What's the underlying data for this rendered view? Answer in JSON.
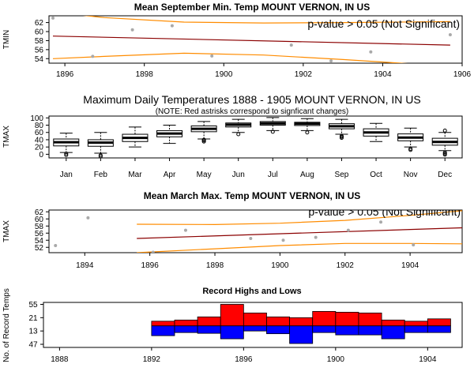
{
  "chart_data": [
    {
      "type": "scatter",
      "title": "Mean September Min. Temp MOUNT VERNON, IN US",
      "ylabel": "TMIN",
      "xlim": [
        1895.6,
        1906.0
      ],
      "ylim": [
        53,
        63.5
      ],
      "yticks": [
        54,
        56,
        58,
        60,
        62
      ],
      "xticks": [
        1896,
        1898,
        1900,
        1902,
        1904,
        1906
      ],
      "annotation": "p-value > 0.05 (Not Significant)",
      "points": [
        {
          "x": 1895.7,
          "y": 63.0
        },
        {
          "x": 1896.7,
          "y": 54.5
        },
        {
          "x": 1897.7,
          "y": 60.4
        },
        {
          "x": 1898.7,
          "y": 61.3
        },
        {
          "x": 1899.7,
          "y": 54.6
        },
        {
          "x": 1901.7,
          "y": 57.0
        },
        {
          "x": 1902.7,
          "y": 53.5
        },
        {
          "x": 1903.7,
          "y": 55.5
        },
        {
          "x": 1905.7,
          "y": 59.3
        }
      ],
      "trend": {
        "x": [
          1895.7,
          1905.7
        ],
        "y": [
          59.0,
          57.0
        ]
      },
      "ci_upper": {
        "x": [
          1895.7,
          1897.0,
          1899.0,
          1901.0,
          1903.0,
          1905.7
        ],
        "y": [
          64.3,
          63.1,
          62.1,
          61.9,
          62.0,
          62.2
        ]
      },
      "ci_lower": {
        "x": [
          1895.7,
          1897.0,
          1899.0,
          1901.0,
          1903.0,
          1905.7
        ],
        "y": [
          54.0,
          54.5,
          55.2,
          54.8,
          53.8,
          52.3
        ]
      }
    },
    {
      "type": "box",
      "title": "Maximum Daily Temperatures 1888 - 1905 MOUNT VERNON, IN US",
      "subtitle": "(NOTE: Red astrisks correspond to signficant changes)",
      "ylabel": "TMAX",
      "ylim": [
        -10,
        105
      ],
      "yticks": [
        0,
        20,
        40,
        60,
        80,
        100
      ],
      "categories": [
        "Jan",
        "Feb",
        "Mar",
        "Apr",
        "May",
        "Jun",
        "Jul",
        "Aug",
        "Sep",
        "Oct",
        "Nov",
        "Dec"
      ],
      "boxes": [
        {
          "whislo": 5,
          "q1": 23,
          "med": 33,
          "q3": 42,
          "whishi": 58,
          "fliers": [
            -2,
            2
          ]
        },
        {
          "whislo": 3,
          "q1": 22,
          "med": 32,
          "q3": 40,
          "whishi": 60,
          "fliers": [
            -3,
            -6
          ]
        },
        {
          "whislo": 20,
          "q1": 35,
          "med": 45,
          "q3": 55,
          "whishi": 75,
          "fliers": []
        },
        {
          "whislo": 30,
          "q1": 48,
          "med": 57,
          "q3": 65,
          "whishi": 80,
          "fliers": []
        },
        {
          "whislo": 42,
          "q1": 62,
          "med": 70,
          "q3": 78,
          "whishi": 90,
          "fliers": [
            35,
            38,
            40
          ]
        },
        {
          "whislo": 60,
          "q1": 75,
          "med": 81,
          "q3": 86,
          "whishi": 96,
          "fliers": [
            55
          ]
        },
        {
          "whislo": 65,
          "q1": 80,
          "med": 85,
          "q3": 90,
          "whishi": 101,
          "fliers": [
            62
          ]
        },
        {
          "whislo": 65,
          "q1": 79,
          "med": 84,
          "q3": 88,
          "whishi": 98,
          "fliers": [
            60
          ]
        },
        {
          "whislo": 55,
          "q1": 70,
          "med": 77,
          "q3": 84,
          "whishi": 96,
          "fliers": [
            45,
            48,
            50
          ]
        },
        {
          "whislo": 35,
          "q1": 50,
          "med": 60,
          "q3": 70,
          "whishi": 85,
          "fliers": []
        },
        {
          "whislo": 20,
          "q1": 37,
          "med": 46,
          "q3": 56,
          "whishi": 72,
          "fliers": [
            12,
            15
          ]
        },
        {
          "whislo": 10,
          "q1": 25,
          "med": 34,
          "q3": 44,
          "whishi": 60,
          "fliers": [
            -1,
            2,
            5,
            65
          ]
        }
      ]
    },
    {
      "type": "scatter",
      "title": "Mean March Max. Temp MOUNT VERNON, IN US",
      "ylabel": "TMAX",
      "xlim": [
        1892.9,
        1905.6
      ],
      "ylim": [
        50.5,
        62.5
      ],
      "yticks": [
        52,
        54,
        56,
        58,
        60,
        62
      ],
      "xticks": [
        1894,
        1896,
        1898,
        1900,
        1902,
        1904
      ],
      "annotation": "p-value > 0.05 (Not Significant)",
      "points": [
        {
          "x": 1893.1,
          "y": 52.5
        },
        {
          "x": 1894.1,
          "y": 60.3
        },
        {
          "x": 1896.1,
          "y": 50.6
        },
        {
          "x": 1897.1,
          "y": 56.8
        },
        {
          "x": 1899.1,
          "y": 54.5
        },
        {
          "x": 1900.1,
          "y": 54.0
        },
        {
          "x": 1901.1,
          "y": 54.8
        },
        {
          "x": 1902.1,
          "y": 56.8
        },
        {
          "x": 1903.1,
          "y": 59.1
        },
        {
          "x": 1904.1,
          "y": 52.7
        }
      ],
      "trend": {
        "x": [
          1895.6,
          1905.6
        ],
        "y": [
          54.5,
          57.5
        ]
      },
      "ci_upper": {
        "x": [
          1895.6,
          1898.0,
          1900.0,
          1902.0,
          1904.0,
          1905.6
        ],
        "y": [
          58.5,
          58.4,
          58.8,
          59.6,
          61.0,
          62.3
        ]
      },
      "ci_lower": {
        "x": [
          1895.6,
          1898.0,
          1900.0,
          1902.0,
          1904.0,
          1905.6
        ],
        "y": [
          50.5,
          51.6,
          52.5,
          53.1,
          53.1,
          53.0
        ]
      }
    },
    {
      "type": "bar",
      "title": "Record Highs and Lows",
      "ylabel": "No. of Record Temps",
      "xlim": [
        1887.3,
        1905.5
      ],
      "xticks": [
        1888,
        1892,
        1896,
        1900,
        1904
      ],
      "yticks": [
        {
          "label": "55",
          "value": 55
        },
        {
          "label": "21",
          "value": 21
        },
        {
          "label": "13",
          "value": -13
        },
        {
          "label": "47",
          "value": -47
        }
      ],
      "ylim": [
        -55,
        60
      ],
      "years": [
        1892,
        1893,
        1894,
        1895,
        1896,
        1897,
        1898,
        1899,
        1900,
        1901,
        1902,
        1903,
        1904
      ],
      "series": [
        {
          "name": "",
          "color": "#ff0000",
          "values": [
            12,
            15,
            23,
            55,
            33,
            23,
            21,
            37,
            35,
            33,
            15,
            12,
            18
          ]
        },
        {
          "name": "",
          "color": "#0000ff",
          "values": [
            -25,
            -17,
            -19,
            -33,
            -13,
            -20,
            -45,
            -17,
            -23,
            -23,
            -33,
            -17,
            -17
          ]
        }
      ]
    }
  ]
}
